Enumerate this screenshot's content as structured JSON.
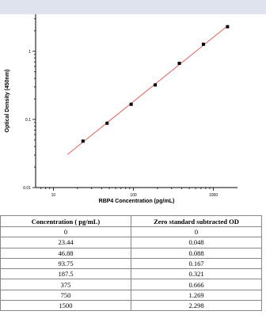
{
  "chart_data": {
    "type": "scatter",
    "xlabel": "RBP4 Concentration (pg/mL)",
    "ylabel": "Optical Density (450nm)",
    "x_scale": "log",
    "y_scale": "log",
    "xlim": [
      6,
      2000
    ],
    "ylim": [
      0.01,
      3.5
    ],
    "x_ticks": [
      {
        "value": 10,
        "label": "10"
      },
      {
        "value": 100,
        "label": "100"
      },
      {
        "value": 1000,
        "label": "1000"
      }
    ],
    "y_ticks": [
      {
        "value": 0.01,
        "label": "0.01"
      },
      {
        "value": 0.1,
        "label": "0.1"
      },
      {
        "value": 1,
        "label": "1"
      }
    ],
    "points": [
      {
        "x": 23.44,
        "y": 0.048
      },
      {
        "x": 46.88,
        "y": 0.088
      },
      {
        "x": 93.75,
        "y": 0.167
      },
      {
        "x": 187.5,
        "y": 0.321
      },
      {
        "x": 375,
        "y": 0.666
      },
      {
        "x": 750,
        "y": 1.269
      },
      {
        "x": 1500,
        "y": 2.298
      }
    ],
    "fit_line": {
      "x_start": 15,
      "x_end": 1500,
      "color": "#e06060"
    },
    "grid": false
  },
  "table": {
    "headers": [
      "Concentration ( pg/mL)",
      "Zero standard subtracted OD"
    ],
    "rows": [
      [
        "0",
        "0"
      ],
      [
        "23.44",
        "0.048"
      ],
      [
        "46.88",
        "0.088"
      ],
      [
        "93.75",
        "0.167"
      ],
      [
        "187.5",
        "0.321"
      ],
      [
        "375",
        "0.666"
      ],
      [
        "750",
        "1.269"
      ],
      [
        "1500",
        "2.298"
      ]
    ]
  }
}
